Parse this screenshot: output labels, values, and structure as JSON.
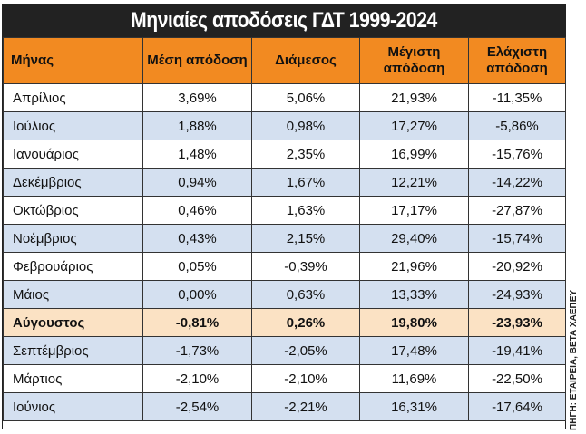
{
  "title": "Μηνιαίες αποδόσεις ΓΔΤ 1999-2024",
  "headers": [
    "Μήνας",
    "Μέση απόδοση",
    "Διάμεσος",
    "Μέγιστη απόδοση",
    "Ελάχιστη απόδοση"
  ],
  "rows": [
    {
      "month": "Απρίλιος",
      "mean": "3,69%",
      "median": "5,06%",
      "max": "21,93%",
      "min": "-11,35%"
    },
    {
      "month": "Ιούλιος",
      "mean": "1,88%",
      "median": "0,98%",
      "max": "17,27%",
      "min": "-5,86%"
    },
    {
      "month": "Ιανουάριος",
      "mean": "1,48%",
      "median": "2,35%",
      "max": "16,99%",
      "min": "-15,76%"
    },
    {
      "month": "Δεκέμβριος",
      "mean": "0,94%",
      "median": "1,67%",
      "max": "12,21%",
      "min": "-14,22%"
    },
    {
      "month": "Οκτώβριος",
      "mean": "0,46%",
      "median": "1,63%",
      "max": "17,17%",
      "min": "-27,87%"
    },
    {
      "month": "Νοέμβριος",
      "mean": "0,43%",
      "median": "2,15%",
      "max": "29,40%",
      "min": "-15,74%"
    },
    {
      "month": "Φεβρουάριος",
      "mean": "0,05%",
      "median": "-0,39%",
      "max": "21,96%",
      "min": "-20,92%"
    },
    {
      "month": "Μάιος",
      "mean": "0,00%",
      "median": "0,63%",
      "max": "13,33%",
      "min": "-24,93%"
    },
    {
      "month": "Αύγουστος",
      "mean": "-0,81%",
      "median": "0,26%",
      "max": "19,80%",
      "min": "-23,93%",
      "highlight": true
    },
    {
      "month": "Σεπτέμβριος",
      "mean": "-1,73%",
      "median": "-2,05%",
      "max": "17,48%",
      "min": "-19,41%"
    },
    {
      "month": "Μάρτιος",
      "mean": "-2,10%",
      "median": "-2,10%",
      "max": "11,69%",
      "min": "-22,50%"
    },
    {
      "month": "Ιούνιος",
      "mean": "-2,54%",
      "median": "-2,21%",
      "max": "16,31%",
      "min": "-17,64%"
    }
  ],
  "source": "ΠΗΓΗ: ΕΤΑΙΡΕΙΑ, ΒΕΤΑ ΧΑΕΠΕΥ",
  "colors": {
    "header_bg": "#f28a21",
    "title_bg": "#222222",
    "stripe_bg": "#d4e0f0",
    "highlight_bg": "#fbe2c4"
  }
}
